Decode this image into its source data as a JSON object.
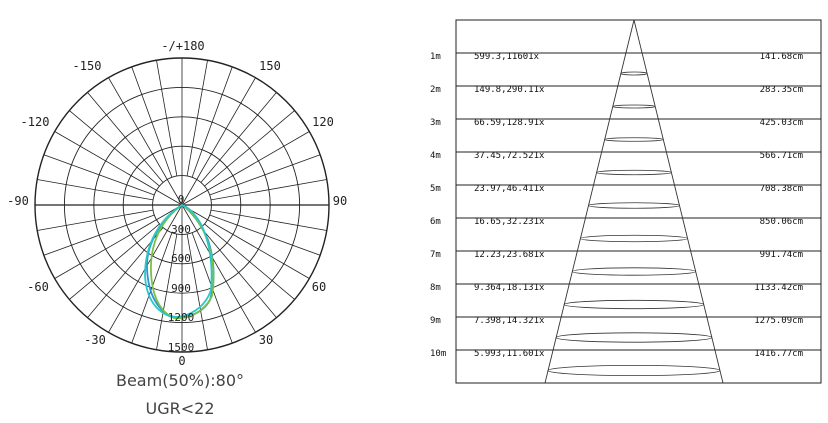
{
  "polar": {
    "angle_labels": {
      "top": "-/+180",
      "l150": "-150",
      "r150": "150",
      "l120": "-120",
      "r120": "120",
      "l90": "-90",
      "r90": "90",
      "l60": "-60",
      "r60": "60",
      "l30": "-30",
      "r30": "30",
      "bottom": "0"
    },
    "radial_labels": [
      "0",
      "300",
      "600",
      "900",
      "1200",
      "1500"
    ],
    "colors": {
      "curve_a": "#2f8fd8",
      "curve_b": "#7ac143",
      "curve_c": "#28c8c8"
    }
  },
  "beam_text": "Beam(50%):80°",
  "ugr_text": "UGR<22",
  "table": {
    "rows": [
      {
        "dist": "1m",
        "values": "599.3,11601x",
        "diameter": "141.68cm"
      },
      {
        "dist": "2m",
        "values": "149.8,290.11x",
        "diameter": "283.35cm"
      },
      {
        "dist": "3m",
        "values": "66.59,128.91x",
        "diameter": "425.03cm"
      },
      {
        "dist": "4m",
        "values": "37.45,72.521x",
        "diameter": "566.71cm"
      },
      {
        "dist": "5m",
        "values": "23.97,46.411x",
        "diameter": "708.38cm"
      },
      {
        "dist": "6m",
        "values": "16.65,32.231x",
        "diameter": "850.06cm"
      },
      {
        "dist": "7m",
        "values": "12.23,23.681x",
        "diameter": "991.74cm"
      },
      {
        "dist": "8m",
        "values": "9.364,18.131x",
        "diameter": "1133.42cm"
      },
      {
        "dist": "9m",
        "values": "7.398,14.321x",
        "diameter": "1275.09cm"
      },
      {
        "dist": "10m",
        "values": "5.993,11.601x",
        "diameter": "1416.77cm"
      }
    ]
  }
}
